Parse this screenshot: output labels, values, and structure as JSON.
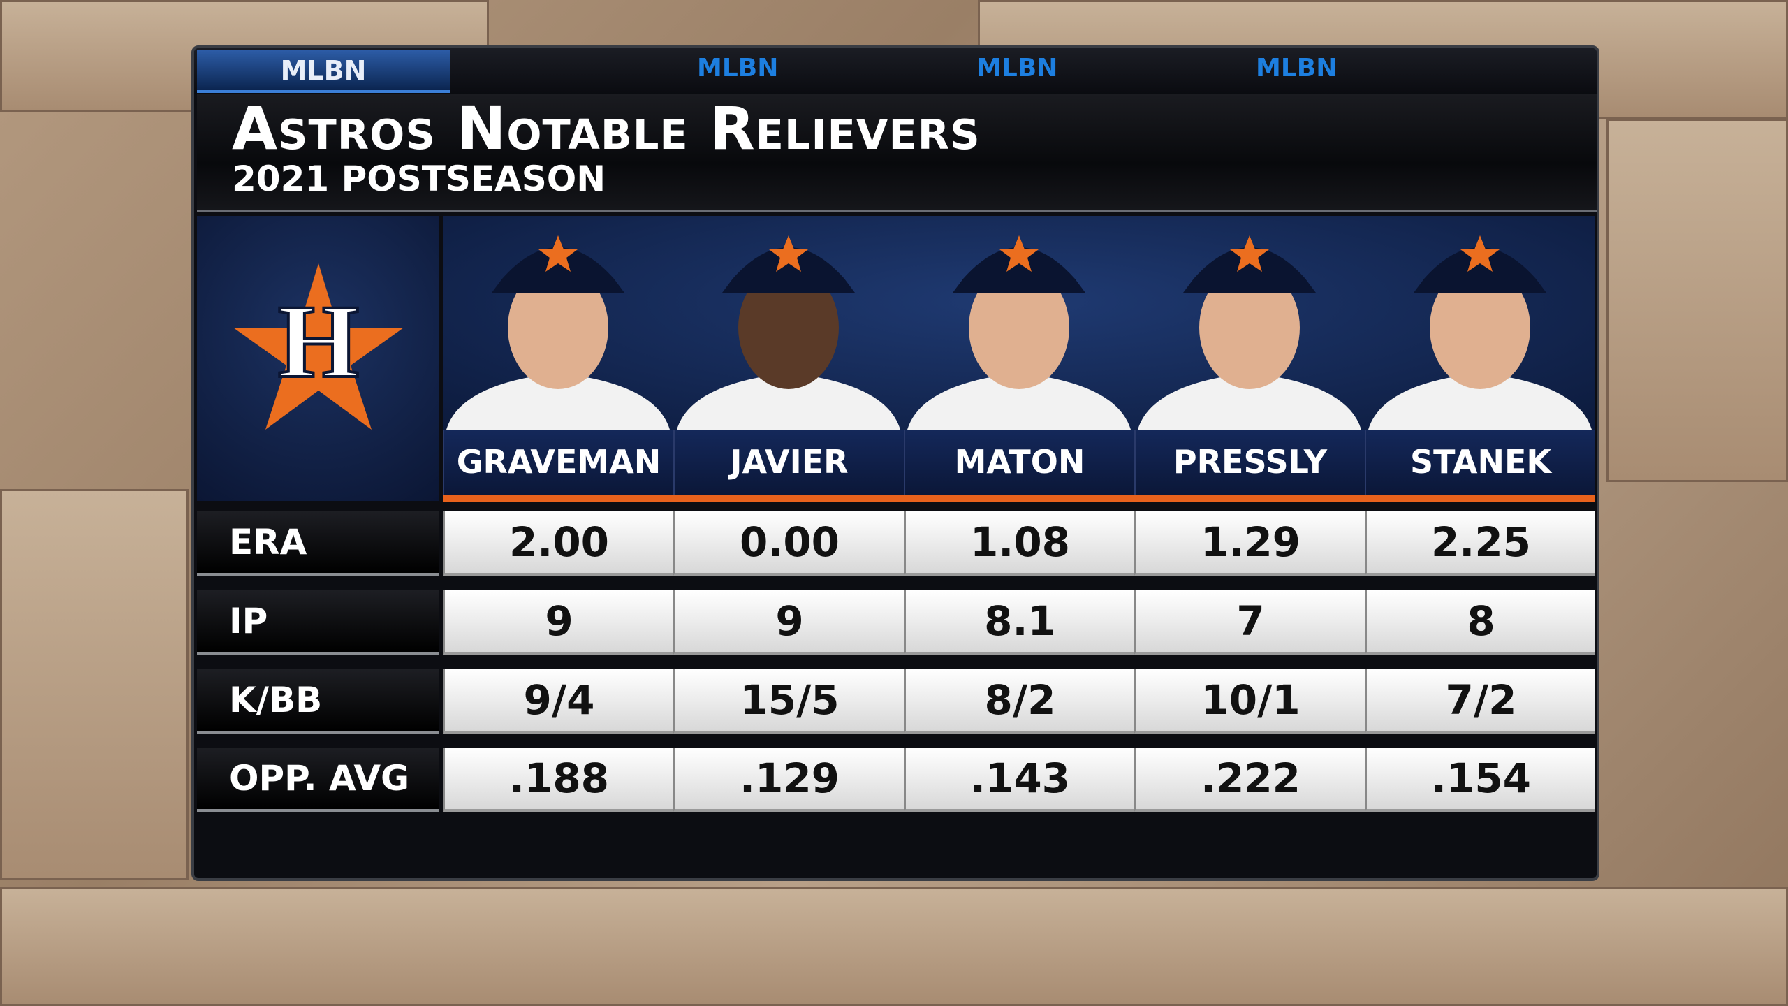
{
  "header": {
    "brand": "MLBN",
    "title": "Astros Notable Relievers",
    "subtitle": "2021 Postseason"
  },
  "table": {
    "players": [
      "GRAVEMAN",
      "JAVIER",
      "MATON",
      "PRESSLY",
      "STANEK"
    ],
    "rows": [
      {
        "label": "ERA",
        "values": [
          "2.00",
          "0.00",
          "1.08",
          "1.29",
          "2.25"
        ]
      },
      {
        "label": "IP",
        "values": [
          "9",
          "9",
          "8.1",
          "7",
          "8"
        ]
      },
      {
        "label": "K/BB",
        "values": [
          "9/4",
          "15/5",
          "8/2",
          "10/1",
          "7/2"
        ]
      },
      {
        "label": "OPP. AVG",
        "values": [
          ".188",
          ".129",
          ".143",
          ".222",
          ".154"
        ]
      }
    ]
  }
}
